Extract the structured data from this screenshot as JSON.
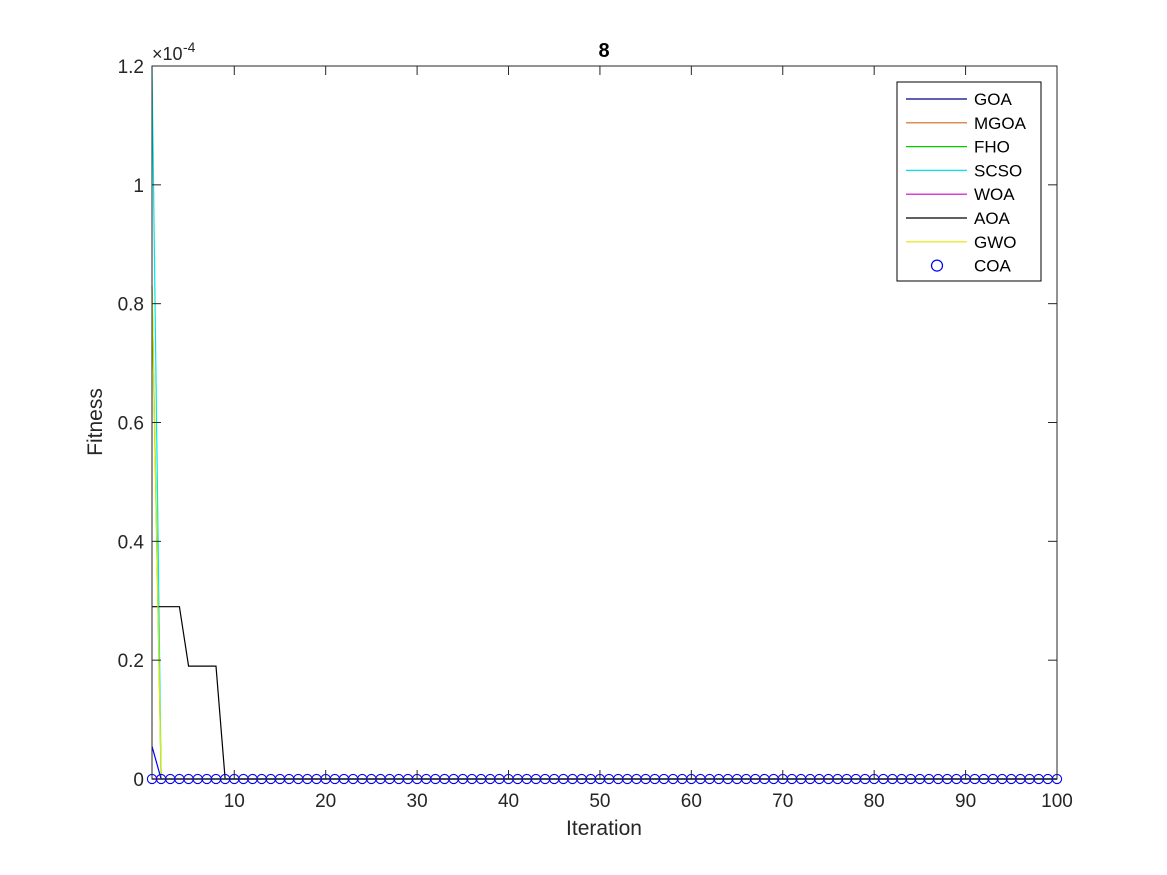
{
  "chart_data": {
    "type": "line",
    "title": "8",
    "xlabel": "Iteration",
    "ylabel": "Fitness",
    "xlim": [
      1,
      100
    ],
    "ylim": [
      0,
      0.00012
    ],
    "y_exponent_label": "×10",
    "y_exponent_power": "-4",
    "xticks": [
      10,
      20,
      30,
      40,
      50,
      60,
      70,
      80,
      90,
      100
    ],
    "xtick_labels": [
      "10",
      "20",
      "30",
      "40",
      "50",
      "60",
      "70",
      "80",
      "90",
      "100"
    ],
    "yticks": [
      0,
      2e-05,
      4e-05,
      6e-05,
      8e-05,
      0.0001,
      0.00012
    ],
    "ytick_labels": [
      "0",
      "0.2",
      "0.4",
      "0.6",
      "0.8",
      "1",
      "1.2"
    ],
    "grid": false,
    "legend_position": "top-right",
    "series": [
      {
        "name": "GOA",
        "color": "#000080",
        "marker": "none",
        "points": [
          [
            1,
            0.0
          ],
          [
            2,
            0.0
          ],
          [
            100,
            0.0
          ]
        ]
      },
      {
        "name": "MGOA",
        "color": "#d2691e",
        "marker": "none",
        "points": [
          [
            1,
            0.0
          ],
          [
            100,
            0.0
          ]
        ]
      },
      {
        "name": "FHO",
        "color": "#00cc00",
        "marker": "none",
        "points": [
          [
            1,
            8.3e-05
          ],
          [
            2,
            0.0
          ],
          [
            100,
            0.0
          ]
        ]
      },
      {
        "name": "SCSO",
        "color": "#00e5e5",
        "marker": "none",
        "points": [
          [
            1,
            0.00012
          ],
          [
            2,
            0.0
          ],
          [
            100,
            0.0
          ]
        ]
      },
      {
        "name": "WOA",
        "color": "#cc00cc",
        "marker": "none",
        "points": [
          [
            1,
            0.0
          ],
          [
            100,
            0.0
          ]
        ]
      },
      {
        "name": "AOA",
        "color": "#000000",
        "marker": "none",
        "points": [
          [
            1,
            2.9e-05
          ],
          [
            4,
            2.9e-05
          ],
          [
            5,
            1.9e-05
          ],
          [
            8,
            1.9e-05
          ],
          [
            9,
            0.0
          ],
          [
            100,
            0.0
          ]
        ]
      },
      {
        "name": "GWO",
        "color": "#e5e500",
        "marker": "none",
        "points": [
          [
            1,
            8.3e-05
          ],
          [
            2,
            0.0
          ],
          [
            100,
            0.0
          ]
        ]
      },
      {
        "name": "COA",
        "color": "#0000ff",
        "marker": "circle",
        "points": [
          [
            1,
            5.5e-06
          ],
          [
            2,
            0.0
          ],
          [
            100,
            0.0
          ]
        ],
        "marker_x_start": 1,
        "marker_x_end": 100,
        "marker_y": 0.0
      }
    ]
  }
}
